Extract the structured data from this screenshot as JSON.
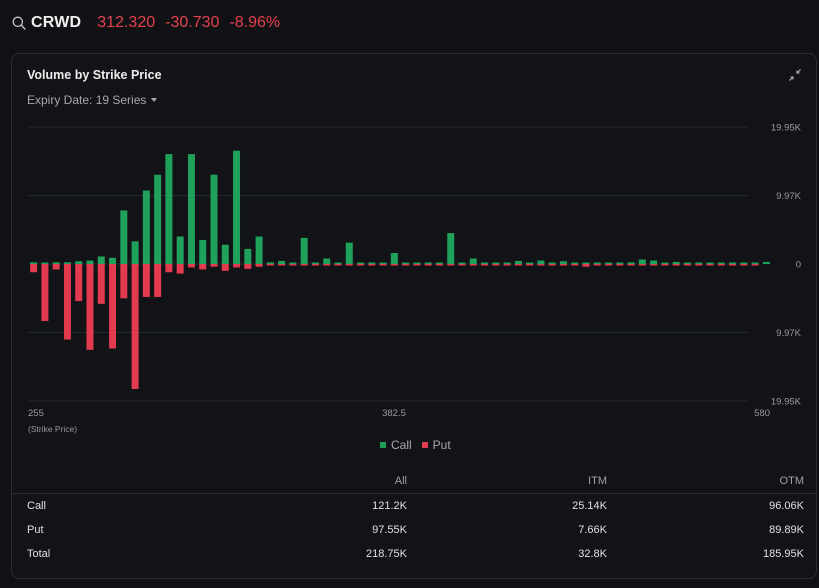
{
  "header": {
    "ticker": "CRWD",
    "price": "312.320",
    "change": "-30.730",
    "change_pct": "-8.96%",
    "negative_color": "#e5414f"
  },
  "card": {
    "title": "Volume by Strike Price",
    "expiry_label": "Expiry Date: 19 Series"
  },
  "chart_data": {
    "type": "bar",
    "title": "Volume by Strike Price",
    "xlabel": "(Strike Price)",
    "x_tick_labels": [
      "255",
      "382.5",
      "580"
    ],
    "y_tick_labels": [
      "19.95K",
      "9.97K",
      "0",
      "9.97K",
      "19.95K"
    ],
    "ylim": [
      -19950,
      19950
    ],
    "grid": true,
    "legend_position": "bottom-center",
    "legend": [
      "Call",
      "Put"
    ],
    "colors": {
      "Call": "#1fa15c",
      "Put": "#e23a4f"
    },
    "series": [
      {
        "name": "Call",
        "values": [
          250,
          100,
          250,
          250,
          400,
          500,
          1100,
          900,
          7800,
          3300,
          10700,
          13000,
          16000,
          4000,
          16000,
          3500,
          13000,
          2800,
          16500,
          2200,
          4000,
          250,
          450,
          200,
          3800,
          200,
          800,
          200,
          3100,
          200,
          200,
          200,
          1600,
          200,
          200,
          200,
          200,
          4500,
          200,
          800,
          200,
          200,
          200,
          450,
          200,
          500,
          200,
          400,
          200,
          200,
          200,
          200,
          200,
          250,
          650,
          500,
          200,
          300,
          200,
          200,
          200,
          200,
          200,
          200,
          200,
          300
        ]
      },
      {
        "name": "Put",
        "values": [
          1200,
          8300,
          800,
          11000,
          5400,
          12500,
          5800,
          12300,
          5000,
          18200,
          4800,
          4800,
          1200,
          1400,
          500,
          800,
          400,
          1000,
          500,
          700,
          400,
          200,
          200,
          200,
          200,
          200,
          200,
          200,
          200,
          200,
          200,
          200,
          200,
          200,
          200,
          200,
          200,
          200,
          200,
          200,
          200,
          200,
          200,
          200,
          200,
          200,
          200,
          200,
          200,
          400,
          200,
          200,
          200,
          200,
          200,
          200,
          200,
          200,
          200,
          200,
          200,
          200,
          200,
          200,
          200,
          0
        ]
      }
    ]
  },
  "summary": {
    "headers": [
      "",
      "All",
      "ITM",
      "OTM"
    ],
    "rows": [
      {
        "label": "Call",
        "all": "121.2K",
        "itm": "25.14K",
        "otm": "96.06K"
      },
      {
        "label": "Put",
        "all": "97.55K",
        "itm": "7.66K",
        "otm": "89.89K"
      },
      {
        "label": "Total",
        "all": "218.75K",
        "itm": "32.8K",
        "otm": "185.95K"
      }
    ]
  }
}
